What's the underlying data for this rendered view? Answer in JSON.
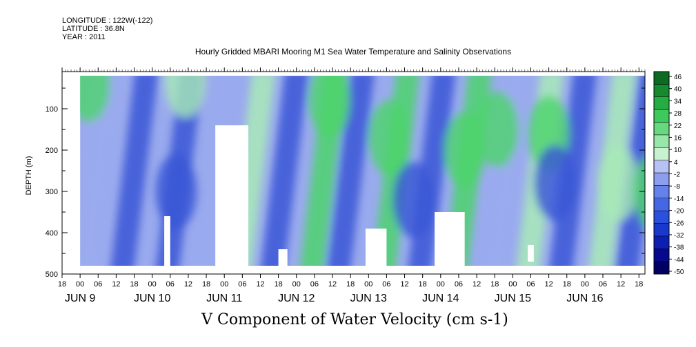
{
  "header": {
    "longitude": "LONGITUDE : 122W(-122)",
    "latitude": "LATITUDE : 36.8N",
    "year": "YEAR : 2011"
  },
  "title": "Hourly Gridded MBARI Mooring M1 Sea Water Temperature and Salinity Observations",
  "variable_title": "V Component of Water Velocity (cm s-1)",
  "colors": {
    "strong_negative": "#0a0a8c",
    "negative": "#3a56d6",
    "weak_negative": "#9aaaee",
    "weak_positive": "#a8eab8",
    "positive": "#4cd46c",
    "strong_positive": "#0e5a1e",
    "missing": "#ffffff"
  },
  "chart_data": {
    "type": "heatmap",
    "title": "Hourly Gridded MBARI Mooring M1 Sea Water Temperature and Salinity Observations",
    "xlabel": "",
    "ylabel": "DEPTH (m)",
    "y_reversed": true,
    "ylim": [
      500,
      10
    ],
    "xlim": [
      "2011-06-08T18:00",
      "2011-06-16T20:00"
    ],
    "y_ticks": [
      100,
      200,
      300,
      400,
      500
    ],
    "x_hour_ticks": [
      "18",
      "00",
      "06",
      "12",
      "18",
      "00",
      "06",
      "12",
      "18",
      "00",
      "06",
      "12",
      "18",
      "00",
      "06",
      "12",
      "18",
      "00",
      "06",
      "12",
      "18",
      "00",
      "06",
      "12",
      "18",
      "00",
      "06",
      "12",
      "18",
      "00",
      "06",
      "12",
      "18"
    ],
    "x_day_labels": [
      "JUN  9",
      "JUN 10",
      "JUN 11",
      "JUN 12",
      "JUN 13",
      "JUN 14",
      "JUN 15",
      "JUN 16"
    ],
    "x_day_label_dates": [
      "2011-06-09",
      "2011-06-10",
      "2011-06-11",
      "2011-06-12",
      "2011-06-13",
      "2011-06-14",
      "2011-06-15",
      "2011-06-16"
    ],
    "colorbar": {
      "levels": [
        -50,
        -44,
        -38,
        -32,
        -26,
        -20,
        -14,
        -8,
        -2,
        4,
        10,
        16,
        22,
        28,
        34,
        40,
        46
      ],
      "labels": [
        "46",
        "40",
        "34",
        "28",
        "22",
        "16",
        "10",
        "4",
        "-2",
        "-8",
        "-14",
        "-20",
        "-26",
        "-32",
        "-38",
        "-44",
        "-50"
      ]
    },
    "data_start": "2011-06-09T00:00",
    "features": [
      {
        "kind": "band",
        "t": "2011-06-09T06:00",
        "value": -10
      },
      {
        "kind": "band",
        "t": "2011-06-09T18:00",
        "value": -16
      },
      {
        "kind": "band",
        "t": "2011-06-10T09:00",
        "value": -14
      },
      {
        "kind": "band",
        "t": "2011-06-11T09:00",
        "value": 6
      },
      {
        "kind": "band",
        "t": "2011-06-11T20:00",
        "value": -18
      },
      {
        "kind": "band",
        "t": "2011-06-12T09:00",
        "value": 8
      },
      {
        "kind": "band",
        "t": "2011-06-12T18:00",
        "value": -12
      },
      {
        "kind": "band",
        "t": "2011-06-13T09:00",
        "value": 10
      },
      {
        "kind": "band",
        "t": "2011-06-13T21:00",
        "value": -14
      },
      {
        "kind": "band",
        "t": "2011-06-14T09:00",
        "value": 12
      },
      {
        "kind": "band",
        "t": "2011-06-14T22:00",
        "value": -10
      },
      {
        "kind": "band",
        "t": "2011-06-15T09:00",
        "value": 6
      },
      {
        "kind": "band",
        "t": "2011-06-15T20:00",
        "value": -16
      },
      {
        "kind": "band",
        "t": "2011-06-16T09:00",
        "value": 4
      },
      {
        "kind": "band",
        "t": "2011-06-16T18:00",
        "value": -12
      },
      {
        "kind": "patch",
        "t": "2011-06-09T03:00",
        "depth": 40,
        "value": 8
      },
      {
        "kind": "patch",
        "t": "2011-06-10T11:00",
        "depth": 30,
        "value": 4
      },
      {
        "kind": "patch",
        "t": "2011-06-12T11:00",
        "depth": 80,
        "value": 10
      },
      {
        "kind": "patch",
        "t": "2011-06-13T07:00",
        "depth": 170,
        "value": 14
      },
      {
        "kind": "patch",
        "t": "2011-06-14T08:00",
        "depth": 200,
        "value": 18
      },
      {
        "kind": "patch",
        "t": "2011-06-14T19:00",
        "depth": 150,
        "value": 12
      },
      {
        "kind": "patch",
        "t": "2011-06-15T12:00",
        "depth": 160,
        "value": 10
      },
      {
        "kind": "patch",
        "t": "2011-06-16T11:00",
        "depth": 280,
        "value": 6
      },
      {
        "kind": "patch",
        "t": "2011-06-16T23:00",
        "depth": 300,
        "value": 8
      },
      {
        "kind": "patch",
        "t": "2011-06-10T08:00",
        "depth": 300,
        "value": -20
      },
      {
        "kind": "patch",
        "t": "2011-06-13T15:00",
        "depth": 320,
        "value": -18
      },
      {
        "kind": "patch",
        "t": "2011-06-15T14:00",
        "depth": 280,
        "value": -20
      }
    ],
    "missing_regions": [
      {
        "start": "2011-06-09T00:00",
        "end": "2011-06-16T20:00",
        "from_depth": 480,
        "to_depth": 500
      },
      {
        "start": "2011-06-10T04:00",
        "end": "2011-06-10T06:00",
        "from_depth": 360,
        "to_depth": 500
      },
      {
        "start": "2011-06-10T21:00",
        "end": "2011-06-11T08:00",
        "from_depth": 140,
        "to_depth": 500
      },
      {
        "start": "2011-06-11T18:00",
        "end": "2011-06-11T21:00",
        "from_depth": 440,
        "to_depth": 500
      },
      {
        "start": "2011-06-12T23:00",
        "end": "2011-06-13T06:00",
        "from_depth": 390,
        "to_depth": 500
      },
      {
        "start": "2011-06-13T22:00",
        "end": "2011-06-14T08:00",
        "from_depth": 350,
        "to_depth": 500
      },
      {
        "start": "2011-06-15T05:00",
        "end": "2011-06-15T07:00",
        "from_depth": 430,
        "to_depth": 470
      }
    ]
  }
}
